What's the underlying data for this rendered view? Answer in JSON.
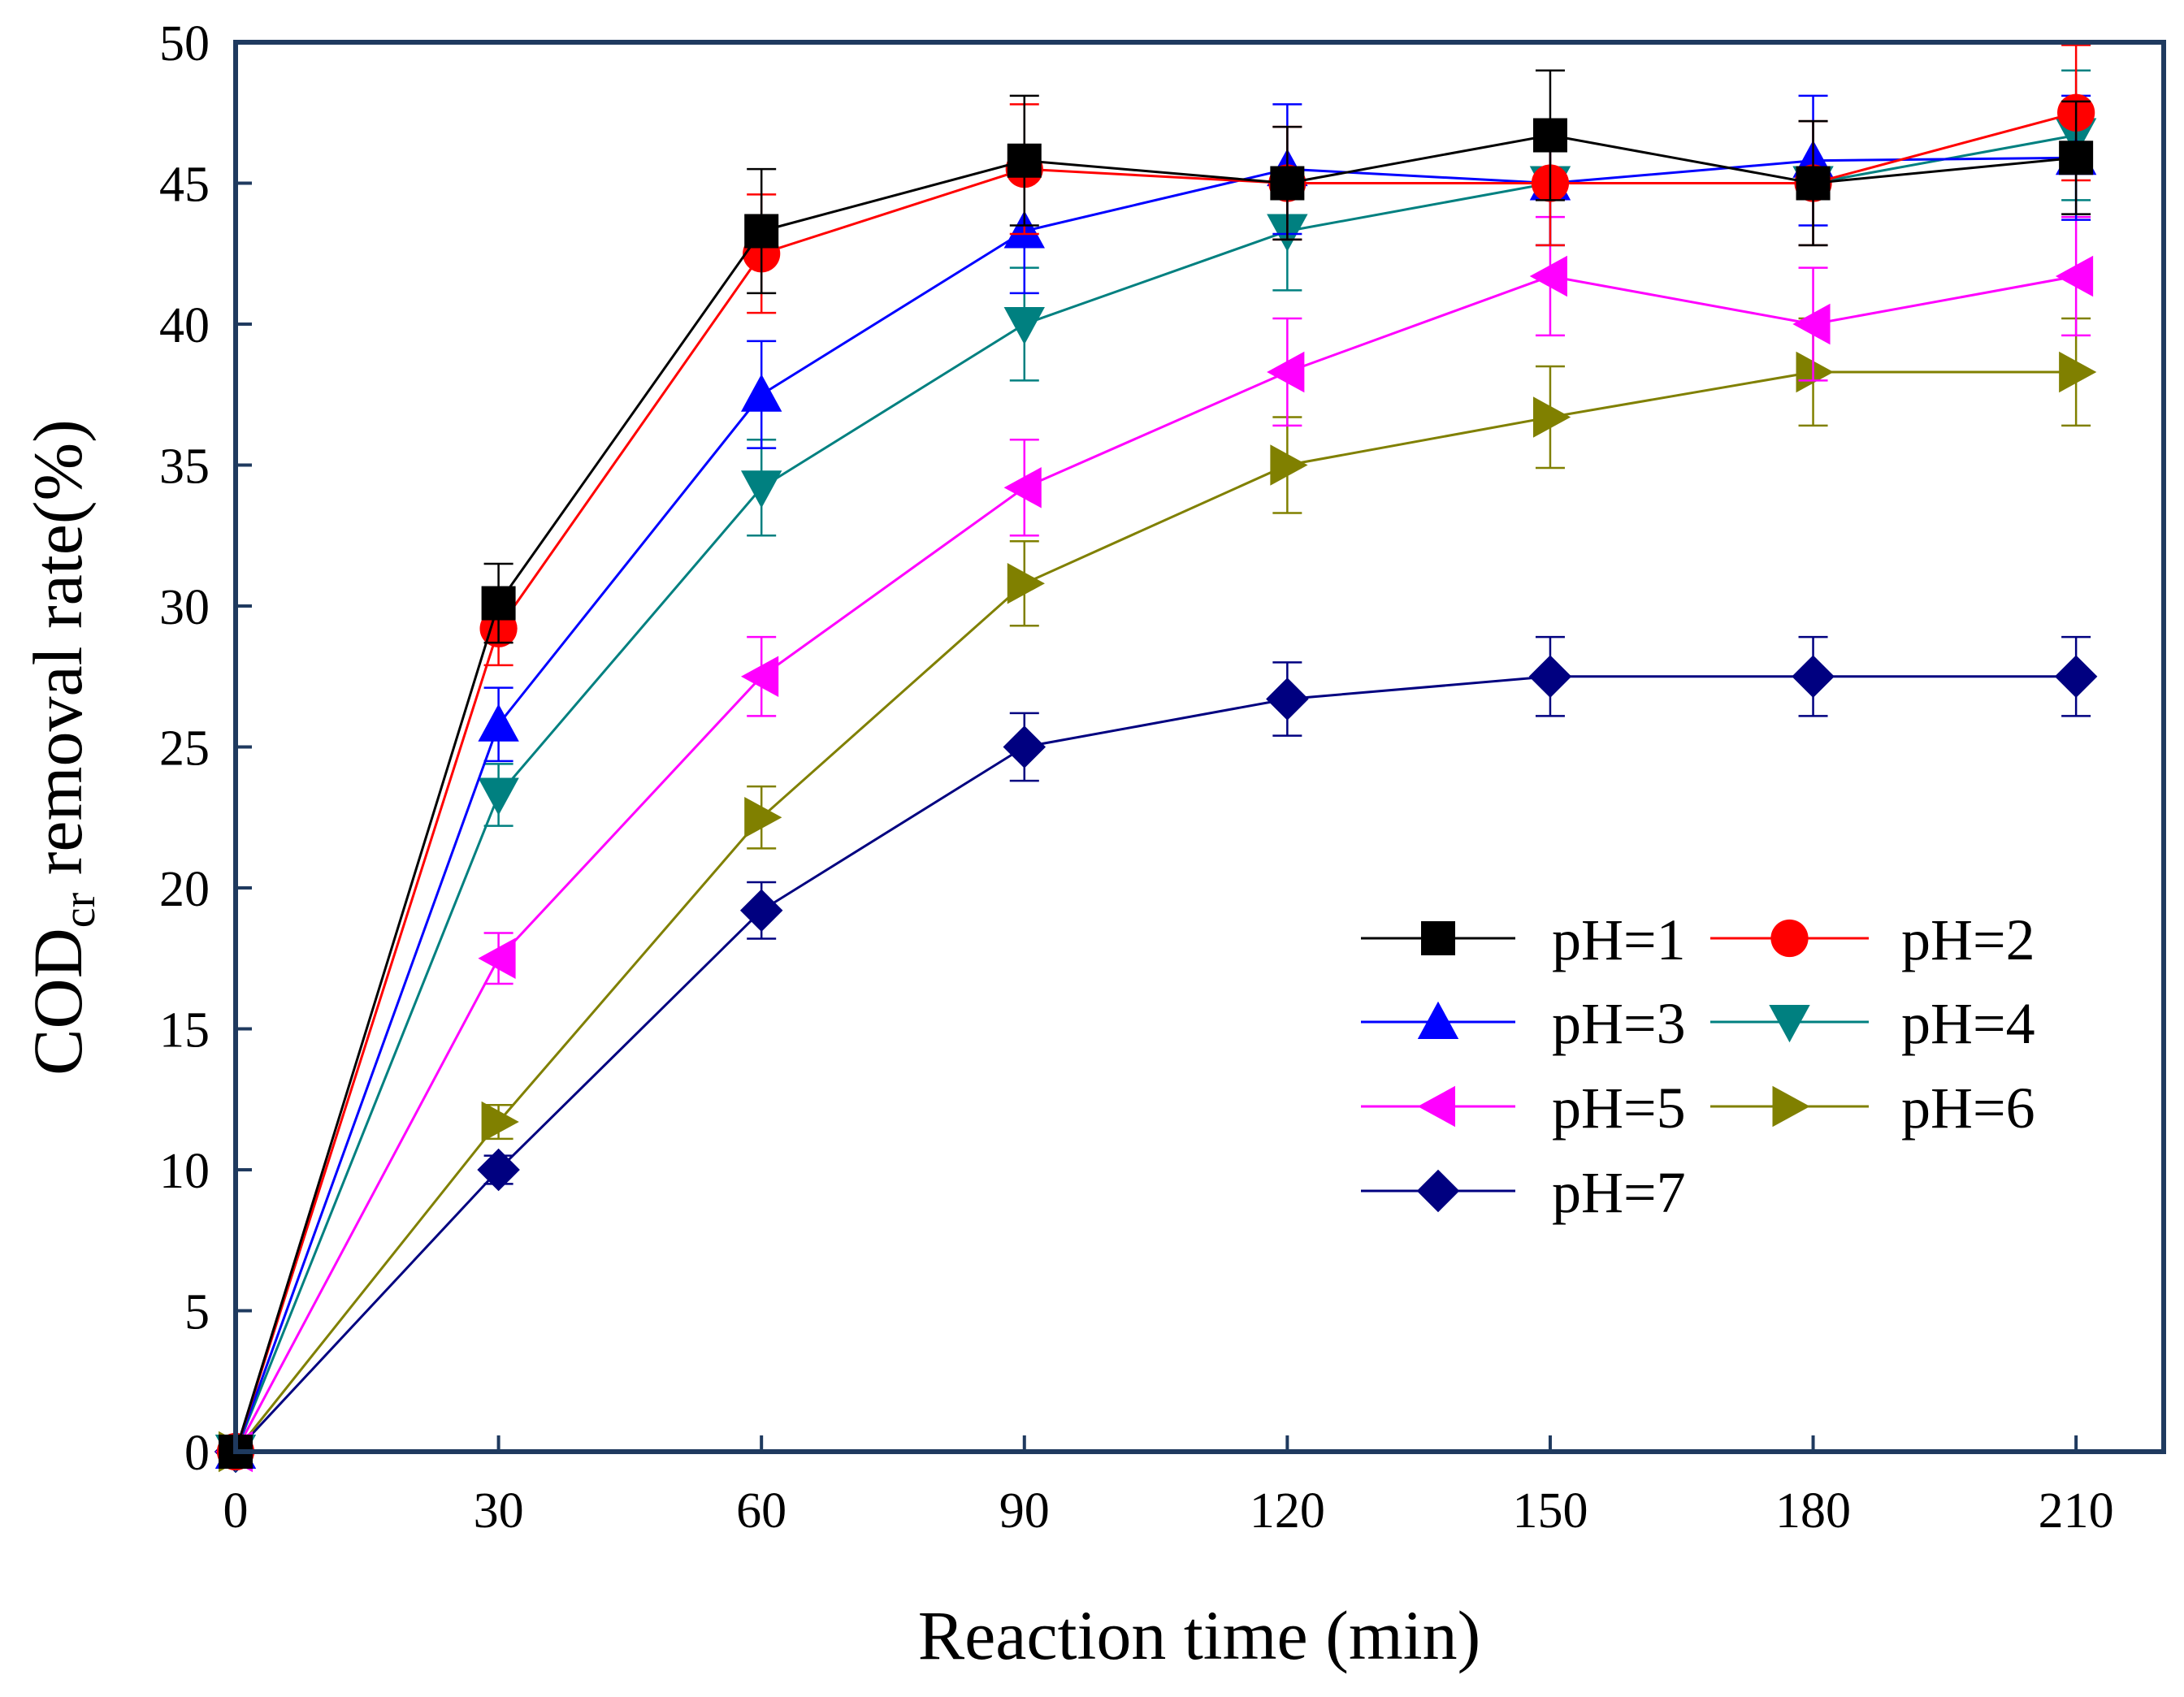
{
  "chart_data": {
    "type": "line",
    "title": "",
    "xlabel": "Reaction time (min)",
    "ylabel": "COD",
    "ylabel_subscript": "cr",
    "ylabel_suffix": " removal rate(%)",
    "xlim": [
      0,
      220
    ],
    "ylim": [
      0,
      50
    ],
    "x_ticks": [
      0,
      30,
      60,
      90,
      120,
      150,
      180,
      210
    ],
    "y_ticks": [
      0,
      5,
      10,
      15,
      20,
      25,
      30,
      35,
      40,
      45,
      50
    ],
    "x_tick_labels": [
      "0",
      "30",
      "60",
      "90",
      "120",
      "150",
      "180",
      "210"
    ],
    "y_tick_labels": [
      "0",
      "5",
      "10",
      "15",
      "20",
      "25",
      "30",
      "35",
      "40",
      "45",
      "50"
    ],
    "grid": false,
    "legend_position": "lower-right",
    "x": [
      0,
      30,
      60,
      90,
      120,
      150,
      180,
      210
    ],
    "series": [
      {
        "name": "pH=1",
        "marker": "square",
        "color": "#000000",
        "values": [
          0,
          30.1,
          43.3,
          45.8,
          45.0,
          46.7,
          45.0,
          45.9
        ],
        "errors": [
          0,
          1.4,
          2.2,
          2.3,
          2.0,
          2.3,
          2.2,
          2.0
        ]
      },
      {
        "name": "pH=2",
        "marker": "circle",
        "color": "#ff0000",
        "values": [
          0,
          29.2,
          42.5,
          45.5,
          45.0,
          45.0,
          45.0,
          47.5
        ],
        "errors": [
          0,
          1.3,
          2.1,
          2.3,
          2.0,
          2.2,
          2.2,
          2.4
        ]
      },
      {
        "name": "pH=3",
        "marker": "triangle-up",
        "color": "#0000ff",
        "values": [
          0,
          25.8,
          37.5,
          43.3,
          45.5,
          45.0,
          45.8,
          45.9
        ],
        "errors": [
          0,
          1.3,
          1.9,
          2.2,
          2.3,
          2.2,
          2.3,
          2.2
        ]
      },
      {
        "name": "pH=4",
        "marker": "triangle-down",
        "color": "#008080",
        "values": [
          0,
          23.3,
          34.2,
          40.0,
          43.3,
          45.0,
          45.0,
          46.7
        ],
        "errors": [
          0,
          1.1,
          1.7,
          2.0,
          2.1,
          2.2,
          2.2,
          2.3
        ]
      },
      {
        "name": "pH=5",
        "marker": "triangle-left",
        "color": "#ff00ff",
        "values": [
          0,
          17.5,
          27.5,
          34.2,
          38.3,
          41.7,
          40.0,
          41.7
        ],
        "errors": [
          0,
          0.9,
          1.4,
          1.7,
          1.9,
          2.1,
          2.0,
          2.1
        ]
      },
      {
        "name": "pH=6",
        "marker": "triangle-right",
        "color": "#808000",
        "values": [
          0,
          11.7,
          22.5,
          30.8,
          35.0,
          36.7,
          38.3,
          38.3
        ],
        "errors": [
          0,
          0.6,
          1.1,
          1.5,
          1.7,
          1.8,
          1.9,
          1.9
        ]
      },
      {
        "name": "pH=7",
        "marker": "diamond",
        "color": "#000080",
        "values": [
          0,
          10.0,
          19.2,
          25.0,
          26.7,
          27.5,
          27.5,
          27.5
        ],
        "errors": [
          0,
          0.5,
          1.0,
          1.2,
          1.3,
          1.4,
          1.4,
          1.4
        ]
      }
    ],
    "frame_color": "#1f3a5f"
  }
}
